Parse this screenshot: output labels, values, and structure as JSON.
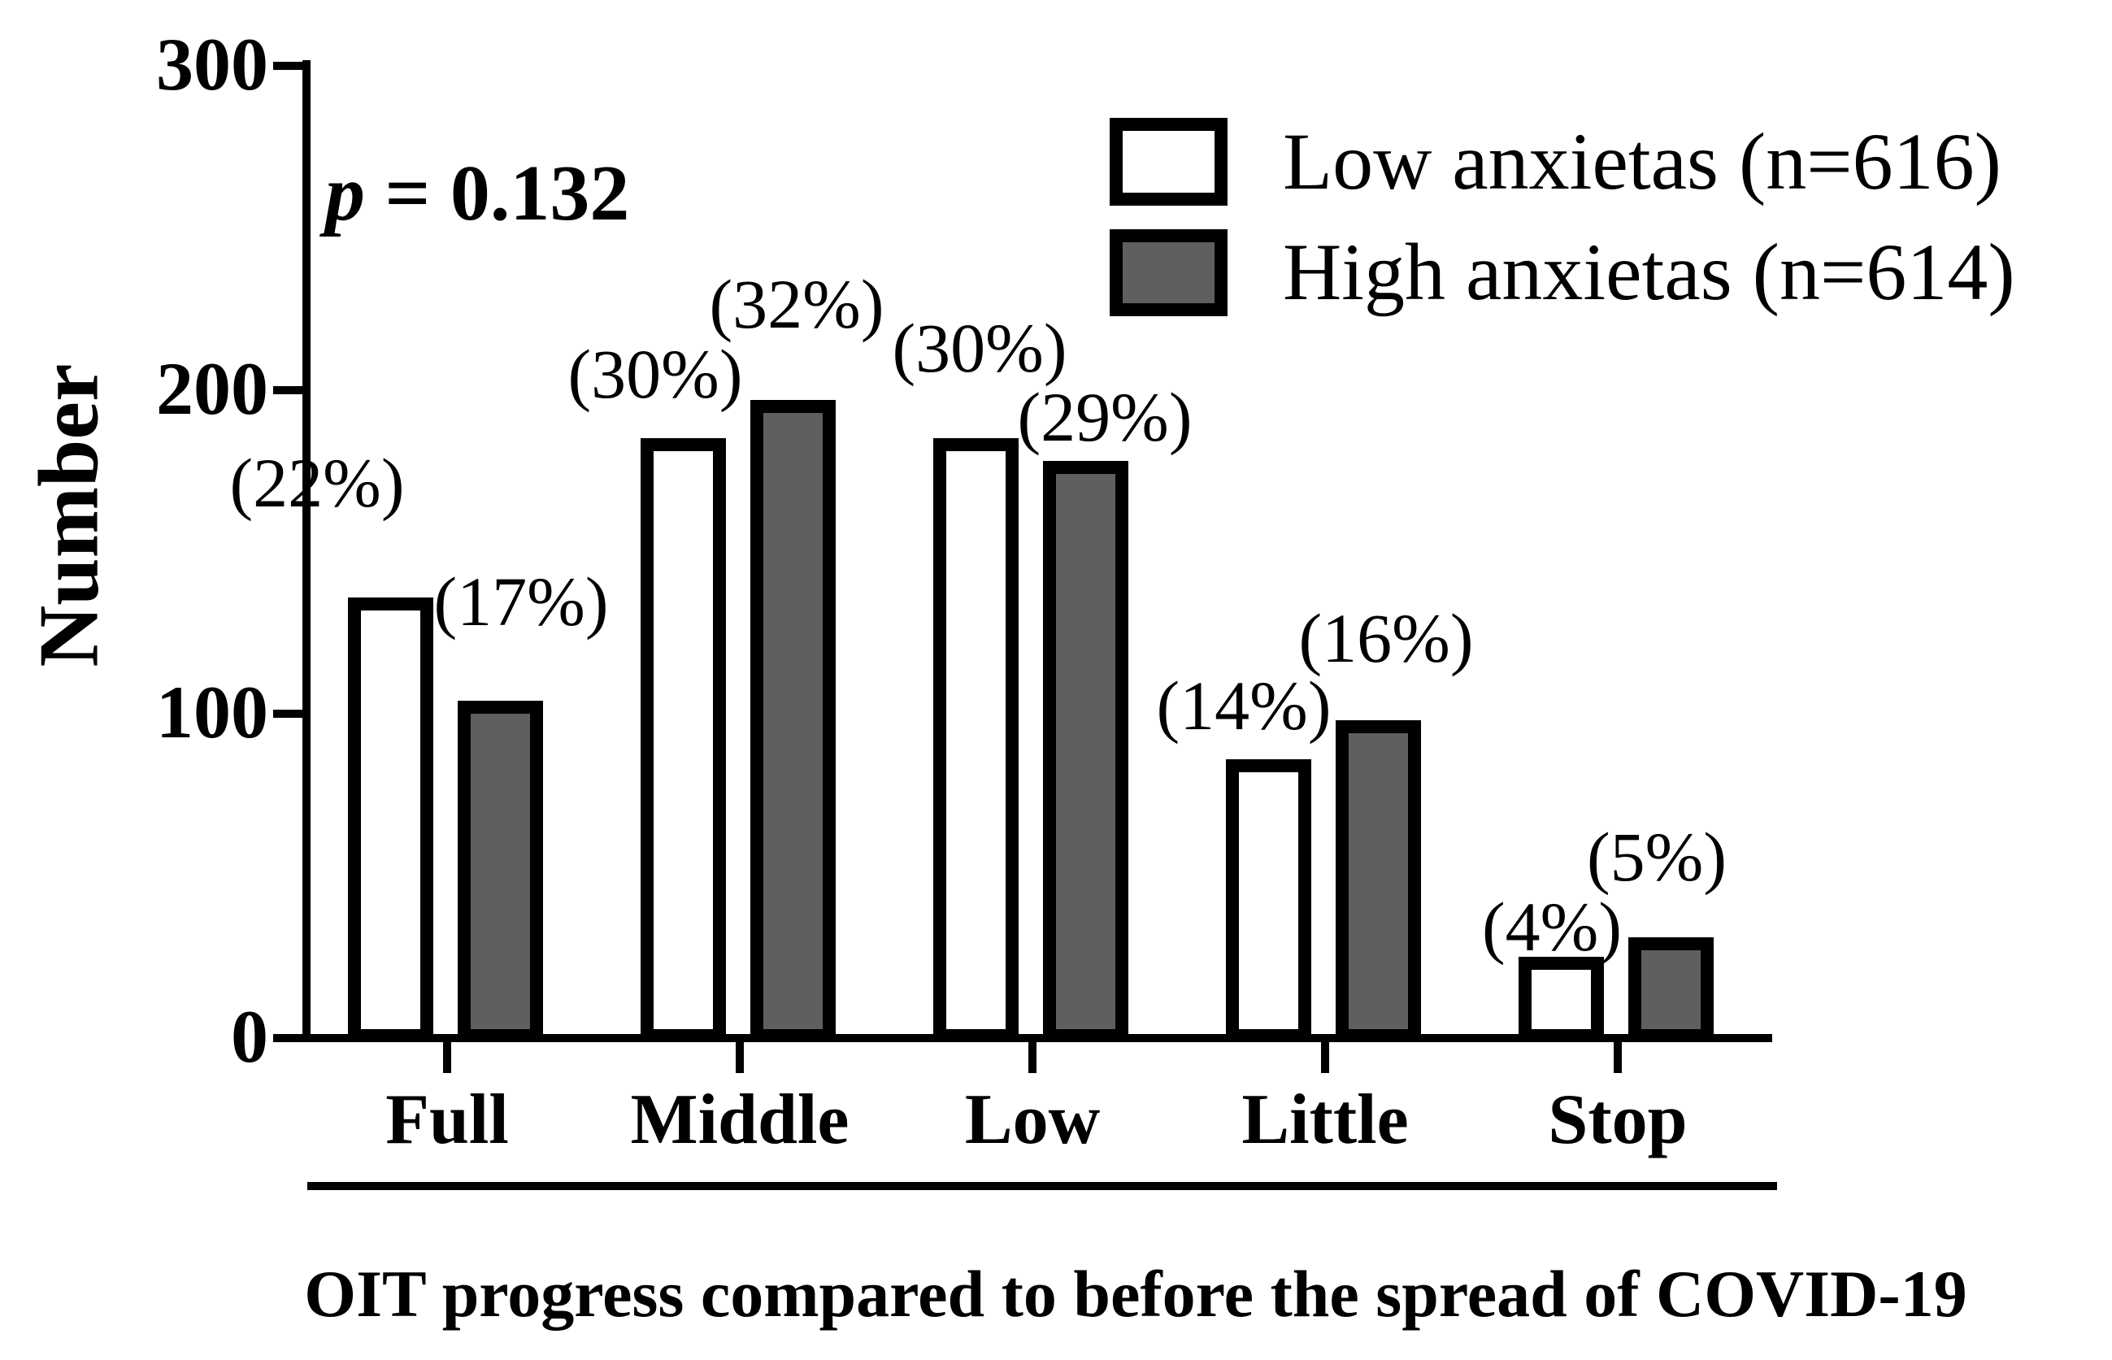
{
  "chart_data": {
    "type": "bar",
    "categories": [
      "Full",
      "Middle",
      "Low",
      "Little",
      "Stop"
    ],
    "series": [
      {
        "name": "Low anxietas (n=616)",
        "key": "low-anxietas",
        "n": 616,
        "fill": "#ffffff",
        "values": [
          136,
          185,
          185,
          86,
          25
        ],
        "percent_labels": [
          "(22%)",
          "(30%)",
          "(30%)",
          "(14%)",
          "(4%)"
        ]
      },
      {
        "name": "High anxietas (n=614)",
        "key": "high-anxietas",
        "n": 614,
        "fill": "#5f5f5f",
        "values": [
          104,
          197,
          178,
          98,
          31
        ],
        "percent_labels": [
          "(17%)",
          "(32%)",
          "(29%)",
          "(16%)",
          "(5%)"
        ]
      }
    ],
    "xlabel": "OIT progress compared to before the spread of COVID-19",
    "ylabel": "Number",
    "ylim": [
      0,
      300
    ],
    "yticks": [
      0,
      100,
      200,
      300
    ],
    "p_value_text": "p = 0.132",
    "p_symbol": "p",
    "p_rest": " = 0.132",
    "legend_position": "top-right",
    "grid": false,
    "bar_outline_color": "#000000",
    "gray_fill": "#5f5f5f"
  }
}
